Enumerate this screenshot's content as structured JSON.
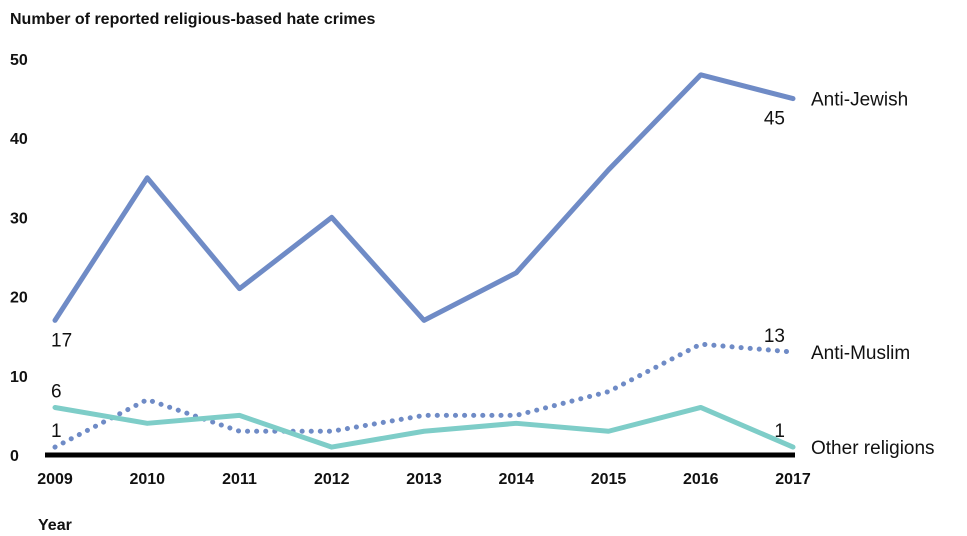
{
  "chart_data": {
    "type": "line",
    "title": "",
    "ylabel": "Number of reported religious-based hate crimes",
    "xlabel": "Year",
    "ylim": [
      0,
      50
    ],
    "yticks": [
      0,
      10,
      20,
      30,
      40,
      50
    ],
    "grid": false,
    "legend": "direct labels at line ends (right)",
    "x": [
      "2009",
      "2010",
      "2011",
      "2012",
      "2013",
      "2014",
      "2015",
      "2016",
      "2017"
    ],
    "series": [
      {
        "name": "Anti-Jewish",
        "values": [
          17,
          35,
          21,
          30,
          17,
          23,
          36,
          48,
          45
        ],
        "color": "#6f8bc6",
        "style": "solid",
        "labels": [
          {
            "index": 0,
            "text": "17",
            "pos": "below"
          },
          {
            "index": 8,
            "text": "45",
            "pos": "below"
          }
        ]
      },
      {
        "name": "Anti-Muslim",
        "values": [
          1,
          7,
          3,
          3,
          5,
          5,
          8,
          14,
          13
        ],
        "color": "#6f8bc6",
        "style": "dotted",
        "labels": [
          {
            "index": 0,
            "text": "1",
            "pos": "above"
          },
          {
            "index": 8,
            "text": "13",
            "pos": "above"
          }
        ]
      },
      {
        "name": "Other religions",
        "values": [
          6,
          4,
          5,
          1,
          3,
          4,
          3,
          6,
          1
        ],
        "color": "#7ecdc8",
        "style": "solid",
        "labels": [
          {
            "index": 0,
            "text": "6",
            "pos": "above"
          },
          {
            "index": 8,
            "text": "1",
            "pos": "above"
          }
        ]
      }
    ]
  }
}
